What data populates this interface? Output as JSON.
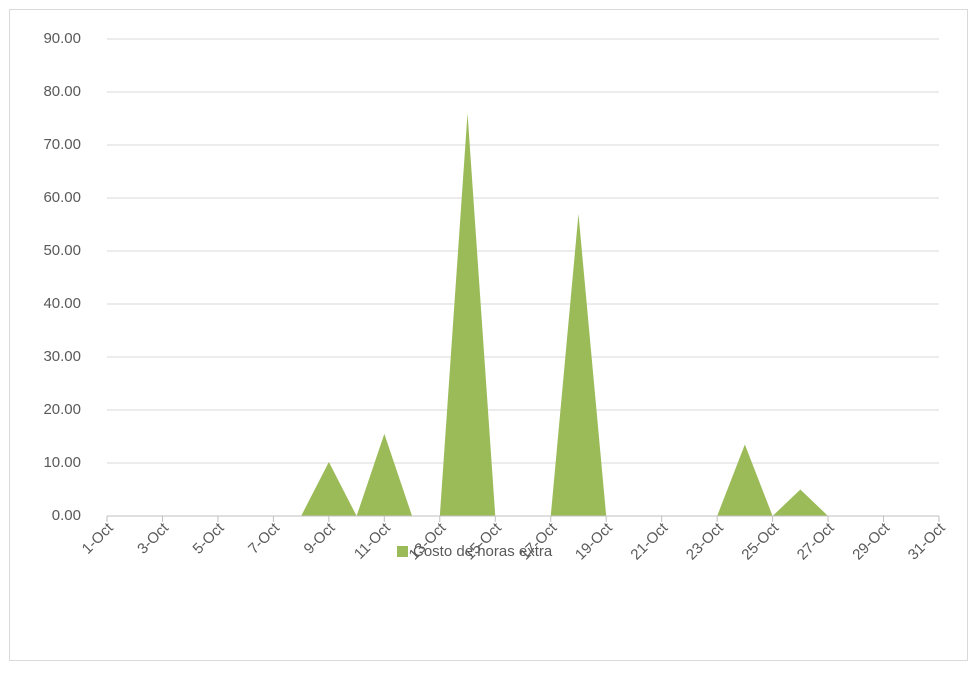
{
  "chart_data": {
    "type": "area",
    "categories": [
      "1-Oct",
      null,
      "3-Oct",
      null,
      "5-Oct",
      null,
      "7-Oct",
      null,
      "9-Oct",
      null,
      "11-Oct",
      null,
      "13-Oct",
      null,
      "15-Oct",
      null,
      "17-Oct",
      null,
      "19-Oct",
      null,
      "21-Oct",
      null,
      "23-Oct",
      null,
      "25-Oct",
      null,
      "27-Oct",
      null,
      "29-Oct",
      null,
      "31-Oct"
    ],
    "series": [
      {
        "name": "Costo de horas extra",
        "color": "#9bbb59",
        "values": [
          0,
          0,
          0,
          0,
          0,
          0,
          0,
          0,
          10.2,
          0,
          15.5,
          0,
          0,
          76,
          0,
          0,
          0,
          57,
          0,
          0,
          0,
          0,
          0,
          13.5,
          0,
          5,
          0,
          0,
          0,
          0,
          0
        ]
      }
    ],
    "ylim": [
      0,
      90
    ],
    "yticks": [
      {
        "value": 0,
        "label": "0.00"
      },
      {
        "value": 10,
        "label": "10.00"
      },
      {
        "value": 20,
        "label": "20.00"
      },
      {
        "value": 30,
        "label": "30.00"
      },
      {
        "value": 40,
        "label": "40.00"
      },
      {
        "value": 50,
        "label": "50.00"
      },
      {
        "value": 60,
        "label": "60.00"
      },
      {
        "value": 70,
        "label": "70.00"
      },
      {
        "value": 80,
        "label": "80.00"
      },
      {
        "value": 90,
        "label": "90.00"
      }
    ],
    "grid": true,
    "legend": "bottom"
  }
}
